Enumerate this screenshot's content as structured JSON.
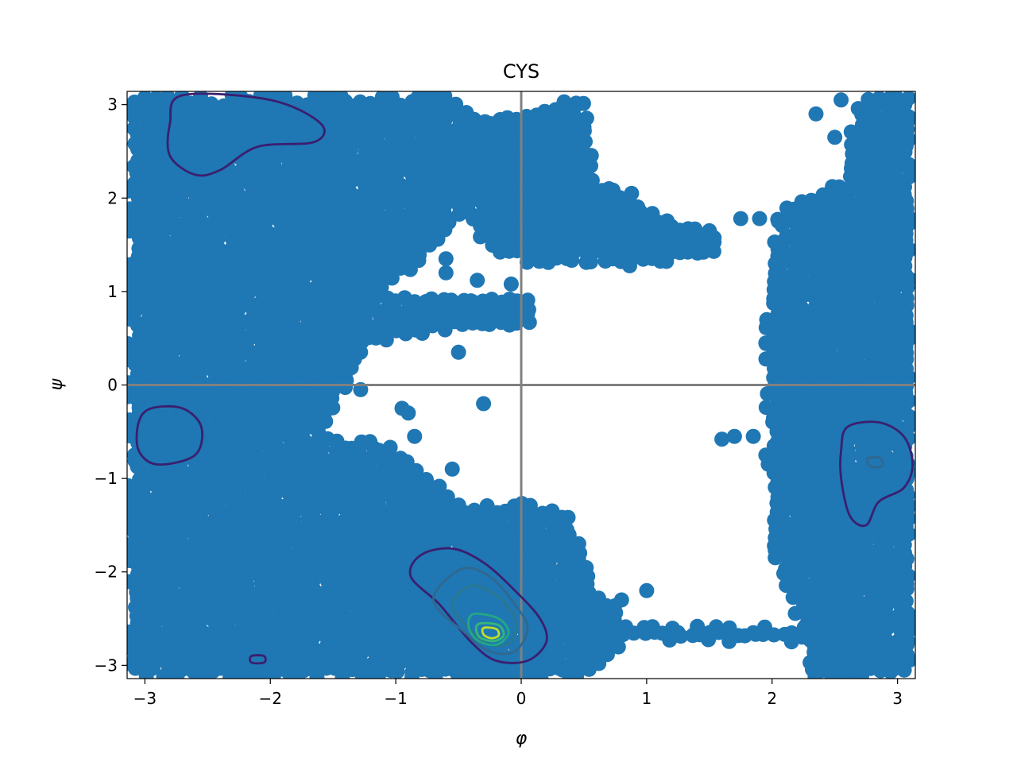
{
  "chart_data": {
    "type": "scatter",
    "title": "CYS",
    "xlabel": "φ",
    "ylabel": "ψ",
    "xlim": [
      -3.1416,
      3.1416
    ],
    "ylim": [
      -3.1416,
      3.1416
    ],
    "xticks": [
      -3,
      -2,
      -1,
      0,
      1,
      2,
      3
    ],
    "yticks": [
      -3,
      -2,
      -1,
      0,
      1,
      2,
      3
    ],
    "xtick_labels": [
      "−3",
      "−2",
      "−1",
      "0",
      "1",
      "2",
      "3"
    ],
    "ytick_labels": [
      "−3",
      "−2",
      "−1",
      "0",
      "1",
      "2",
      "3"
    ],
    "reference_lines": {
      "x": 0,
      "y": 0,
      "color": "#808080"
    },
    "scatter_color": "#1f77b4",
    "grid": false,
    "legend": "none",
    "point_regions": [
      {
        "name": "upper-left",
        "polygon": [
          [
            -3.14,
            3.1
          ],
          [
            -0.5,
            3.1
          ],
          [
            -0.2,
            2.7
          ],
          [
            -0.3,
            2.2
          ],
          [
            -0.6,
            1.6
          ],
          [
            -0.9,
            1.2
          ],
          [
            -1.2,
            0.9
          ],
          [
            -1.3,
            0.2
          ],
          [
            -1.6,
            -0.5
          ],
          [
            -2.0,
            -0.6
          ],
          [
            -2.5,
            -0.9
          ],
          [
            -3.14,
            -0.9
          ]
        ]
      },
      {
        "name": "upper-middle",
        "polygon": [
          [
            -0.55,
            2.7
          ],
          [
            0.5,
            3.1
          ],
          [
            0.6,
            2.2
          ],
          [
            1.0,
            1.9
          ],
          [
            1.6,
            1.6
          ],
          [
            1.6,
            1.45
          ],
          [
            1.0,
            1.25
          ],
          [
            0.3,
            1.3
          ],
          [
            0.0,
            1.3
          ],
          [
            -0.3,
            1.5
          ],
          [
            -0.5,
            2.0
          ]
        ]
      },
      {
        "name": "mid-left-band",
        "polygon": [
          [
            -1.3,
            0.95
          ],
          [
            0.1,
            0.95
          ],
          [
            0.1,
            0.65
          ],
          [
            -0.8,
            0.55
          ],
          [
            -1.3,
            0.4
          ]
        ]
      },
      {
        "name": "lower-left",
        "polygon": [
          [
            -3.14,
            -0.95
          ],
          [
            -2.4,
            -0.8
          ],
          [
            -1.7,
            -0.55
          ],
          [
            -1.1,
            -0.6
          ],
          [
            -0.7,
            -1.0
          ],
          [
            -0.4,
            -1.3
          ],
          [
            -0.05,
            -1.25
          ],
          [
            0.35,
            -1.35
          ],
          [
            0.5,
            -1.7
          ],
          [
            0.55,
            -2.2
          ],
          [
            0.8,
            -2.4
          ],
          [
            0.8,
            -2.8
          ],
          [
            0.5,
            -3.14
          ],
          [
            -3.14,
            -3.14
          ]
        ]
      },
      {
        "name": "right-column",
        "polygon": [
          [
            2.05,
            1.85
          ],
          [
            2.6,
            2.2
          ],
          [
            2.65,
            3.05
          ],
          [
            3.14,
            3.1
          ],
          [
            3.14,
            -3.14
          ],
          [
            2.3,
            -3.14
          ],
          [
            2.2,
            -2.5
          ],
          [
            2.0,
            -1.8
          ],
          [
            1.95,
            -0.7
          ],
          [
            1.95,
            0.6
          ],
          [
            2.0,
            1.5
          ]
        ]
      },
      {
        "name": "bottom-strip",
        "polygon": [
          [
            0.6,
            -2.58
          ],
          [
            2.4,
            -2.58
          ],
          [
            2.4,
            -2.75
          ],
          [
            0.6,
            -2.75
          ]
        ]
      }
    ],
    "density_contours": [
      {
        "level": 1,
        "color": "#3b1f6f",
        "rings": [
          [
            [
              -0.55,
              -1.75
            ],
            [
              -0.3,
              -1.9
            ],
            [
              -0.05,
              -2.2
            ],
            [
              0.15,
              -2.5
            ],
            [
              0.2,
              -2.75
            ],
            [
              0.05,
              -2.95
            ],
            [
              -0.2,
              -2.95
            ],
            [
              -0.4,
              -2.75
            ],
            [
              -0.65,
              -2.35
            ],
            [
              -0.88,
              -2.05
            ],
            [
              -0.8,
              -1.82
            ]
          ],
          [
            [
              -2.7,
              3.1
            ],
            [
              -2.0,
              3.05
            ],
            [
              -1.6,
              2.8
            ],
            [
              -1.65,
              2.6
            ],
            [
              -2.1,
              2.55
            ],
            [
              -2.4,
              2.3
            ],
            [
              -2.6,
              2.25
            ],
            [
              -2.8,
              2.45
            ],
            [
              -2.8,
              2.8
            ]
          ],
          [
            [
              -2.95,
              -0.25
            ],
            [
              -2.7,
              -0.25
            ],
            [
              -2.55,
              -0.45
            ],
            [
              -2.6,
              -0.75
            ],
            [
              -2.9,
              -0.85
            ],
            [
              -3.05,
              -0.7
            ],
            [
              -3.05,
              -0.4
            ]
          ],
          [
            [
              2.6,
              -0.45
            ],
            [
              2.85,
              -0.4
            ],
            [
              3.05,
              -0.55
            ],
            [
              3.12,
              -0.85
            ],
            [
              3.05,
              -1.1
            ],
            [
              2.85,
              -1.25
            ],
            [
              2.75,
              -1.5
            ],
            [
              2.62,
              -1.4
            ],
            [
              2.55,
              -1.0
            ],
            [
              2.55,
              -0.7
            ]
          ],
          [
            [
              -2.15,
              -2.9
            ],
            [
              -2.05,
              -2.9
            ],
            [
              -2.05,
              -2.97
            ],
            [
              -2.15,
              -2.97
            ]
          ]
        ]
      },
      {
        "level": 2,
        "color": "#31688e",
        "rings": [
          [
            [
              -0.48,
              -1.97
            ],
            [
              -0.25,
              -2.05
            ],
            [
              -0.05,
              -2.35
            ],
            [
              0.05,
              -2.6
            ],
            [
              -0.05,
              -2.85
            ],
            [
              -0.25,
              -2.85
            ],
            [
              -0.45,
              -2.65
            ],
            [
              -0.7,
              -2.3
            ]
          ],
          [
            [
              2.77,
              -0.78
            ],
            [
              2.86,
              -0.78
            ],
            [
              2.88,
              -0.86
            ],
            [
              2.8,
              -0.88
            ],
            [
              2.76,
              -0.83
            ]
          ]
        ]
      },
      {
        "level": 3,
        "color": "#2a788e",
        "rings": [
          [
            [
              -0.4,
              -2.15
            ],
            [
              -0.2,
              -2.25
            ],
            [
              -0.05,
              -2.5
            ],
            [
              -0.08,
              -2.75
            ],
            [
              -0.25,
              -2.78
            ],
            [
              -0.42,
              -2.6
            ],
            [
              -0.55,
              -2.35
            ]
          ]
        ]
      },
      {
        "level": 4,
        "color": "#22a884",
        "rings": [
          [
            [
              -0.38,
              -2.45
            ],
            [
              -0.18,
              -2.5
            ],
            [
              -0.1,
              -2.65
            ],
            [
              -0.2,
              -2.78
            ],
            [
              -0.35,
              -2.73
            ],
            [
              -0.42,
              -2.58
            ]
          ]
        ]
      },
      {
        "level": 5,
        "color": "#35b779",
        "rings": [
          [
            [
              -0.32,
              -2.55
            ],
            [
              -0.18,
              -2.57
            ],
            [
              -0.14,
              -2.68
            ],
            [
              -0.22,
              -2.74
            ],
            [
              -0.33,
              -2.7
            ],
            [
              -0.36,
              -2.6
            ]
          ]
        ]
      },
      {
        "level": 6,
        "color": "#bddf26",
        "rings": [
          [
            [
              -0.3,
              -2.6
            ],
            [
              -0.2,
              -2.61
            ],
            [
              -0.18,
              -2.68
            ],
            [
              -0.24,
              -2.71
            ],
            [
              -0.3,
              -2.67
            ]
          ]
        ]
      }
    ],
    "outlier_points": [
      [
        -0.08,
        1.08
      ],
      [
        -0.35,
        1.12
      ],
      [
        0.0,
        0.76
      ],
      [
        0.05,
        0.76
      ],
      [
        -0.5,
        0.35
      ],
      [
        -0.95,
        -0.25
      ],
      [
        -1.28,
        -0.05
      ],
      [
        -2.9,
        -1.42
      ],
      [
        -2.4,
        -1.72
      ],
      [
        -1.35,
        -1.73
      ],
      [
        -1.2,
        -1.65
      ],
      [
        0.33,
        -3.05
      ],
      [
        1.0,
        -2.2
      ],
      [
        0.8,
        -2.3
      ],
      [
        1.25,
        -2.65
      ],
      [
        1.5,
        -2.65
      ],
      [
        1.85,
        -2.65
      ],
      [
        1.2,
        1.55
      ],
      [
        1.3,
        1.55
      ],
      [
        1.5,
        1.65
      ],
      [
        1.75,
        1.78
      ],
      [
        1.9,
        1.78
      ],
      [
        2.05,
        1.75
      ],
      [
        0.55,
        1.85
      ],
      [
        0.7,
        2.1
      ],
      [
        0.88,
        2.05
      ],
      [
        -0.45,
        2.1
      ],
      [
        -0.35,
        2.25
      ],
      [
        -0.6,
        1.35
      ],
      [
        -0.75,
        1.5
      ],
      [
        -0.6,
        1.2
      ],
      [
        -0.4,
        0.9
      ],
      [
        -0.2,
        0.8
      ],
      [
        -0.3,
        -0.2
      ],
      [
        -0.55,
        -0.9
      ],
      [
        -0.7,
        -1.1
      ],
      [
        1.6,
        -0.58
      ],
      [
        1.7,
        -0.55
      ],
      [
        1.85,
        -0.55
      ],
      [
        1.95,
        -0.75
      ],
      [
        1.95,
        0.45
      ],
      [
        2.5,
        2.65
      ],
      [
        2.35,
        2.9
      ],
      [
        2.55,
        3.05
      ],
      [
        -3.05,
        -1.8
      ],
      [
        -3.05,
        -2.15
      ],
      [
        -2.0,
        2.0
      ],
      [
        -1.8,
        1.55
      ],
      [
        -2.2,
        1.45
      ],
      [
        -1.45,
        1.35
      ],
      [
        -1.6,
        1.0
      ],
      [
        -0.9,
        -0.3
      ],
      [
        -0.85,
        -0.55
      ],
      [
        -1.05,
        -1.4
      ],
      [
        -1.35,
        -1.5
      ],
      [
        -1.6,
        -1.9
      ],
      [
        -1.75,
        -2.15
      ]
    ]
  }
}
